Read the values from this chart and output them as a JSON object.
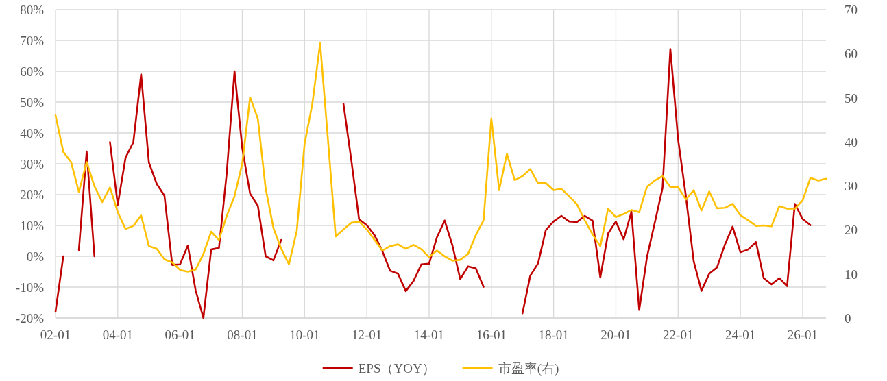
{
  "chart_data": {
    "type": "line",
    "categories": [
      "02-01",
      null,
      null,
      null,
      null,
      null,
      null,
      null,
      "04-01",
      null,
      null,
      null,
      null,
      null,
      null,
      null,
      "06-01",
      null,
      null,
      null,
      null,
      null,
      null,
      null,
      "08-01",
      null,
      null,
      null,
      null,
      null,
      null,
      null,
      "10-01",
      null,
      null,
      null,
      null,
      null,
      null,
      null,
      "12-01",
      null,
      null,
      null,
      null,
      null,
      null,
      null,
      "14-01",
      null,
      null,
      null,
      null,
      null,
      null,
      null,
      "16-01",
      null,
      null,
      null,
      null,
      null,
      null,
      null,
      "18-01",
      null,
      null,
      null,
      null,
      null,
      null,
      null,
      "20-01",
      null,
      null,
      null,
      null,
      null,
      null,
      null,
      "22-01",
      null,
      null,
      null,
      null,
      null,
      null,
      null,
      "24-01",
      null,
      null,
      null,
      null,
      null,
      null,
      null,
      "26-01",
      null,
      null,
      null
    ],
    "series": [
      {
        "name": "EPS（YOY）",
        "color": "#c00000",
        "values": [
          -18,
          0,
          null,
          2,
          34,
          0,
          null,
          37,
          16.7,
          32,
          37,
          59,
          30.4,
          23.5,
          19.6,
          -2.8,
          -2.6,
          3.5,
          -11,
          -20,
          2.2,
          2.7,
          27,
          60,
          35,
          20.3,
          16.4,
          0,
          -1.3,
          5.3,
          null,
          null,
          null,
          null,
          null,
          null,
          null,
          49.4,
          31.3,
          12,
          10.1,
          6.8,
          1.6,
          -4.7,
          -5.6,
          -11.3,
          -8,
          -2.6,
          -2.4,
          6.1,
          11.6,
          3.5,
          -7.4,
          -3.3,
          -3.9,
          -9.9,
          null,
          null,
          null,
          null,
          -18.5,
          -6.3,
          -2.3,
          8.5,
          11.3,
          13.1,
          11.3,
          11.1,
          13.1,
          11.6,
          -6.9,
          7.4,
          11.3,
          5.5,
          14.4,
          -17.4,
          -0.2,
          10.9,
          22.2,
          67.2,
          37.9,
          19.4,
          -1.6,
          -11.2,
          -5.6,
          -3.6,
          3.7,
          9.6,
          1.3,
          2.2,
          4.6,
          -7.1,
          -9.1,
          -7.1,
          -9.7,
          17,
          12.1,
          10.1,
          null,
          null
        ]
      },
      {
        "name": "市盈率(右)",
        "color": "#ffc000",
        "axis": "y2",
        "values": [
          46,
          37.7,
          35.4,
          28.6,
          35.4,
          29.9,
          26.3,
          29.6,
          24,
          20.2,
          20.9,
          23.3,
          16.3,
          15.7,
          13.3,
          12.6,
          10.9,
          10.5,
          11,
          14.5,
          19.6,
          17.7,
          23.2,
          27.6,
          35.1,
          50.1,
          45.2,
          29.4,
          20.4,
          15.7,
          12.2,
          19.8,
          39.5,
          48.6,
          62.4,
          40.6,
          18.5,
          20.1,
          21.6,
          21.9,
          20.1,
          17.7,
          15.3,
          16.3,
          16.7,
          15.7,
          16.6,
          15.6,
          13.8,
          15.3,
          14,
          13,
          13.2,
          14.5,
          18.8,
          22.2,
          45.3,
          29,
          37.3,
          31.3,
          32.2,
          33.8,
          30.6,
          30.6,
          29,
          29.3,
          27.6,
          25.8,
          22.2,
          19,
          16.3,
          24.8,
          22.9,
          23.6,
          24.5,
          24,
          29.8,
          31.2,
          32.2,
          29.7,
          29.7,
          26.9,
          29,
          24.4,
          28.7,
          24.9,
          25,
          25.9,
          23.3,
          22.2,
          20.9,
          21,
          20.8,
          25.4,
          24.8,
          24.8,
          26.7,
          31.8,
          31.2,
          31.6
        ]
      }
    ],
    "ylim": [
      -20,
      80
    ],
    "yticks": [
      {
        "value": -20,
        "label": "-20%"
      },
      {
        "value": -10,
        "label": "-10%"
      },
      {
        "value": 0,
        "label": "0%"
      },
      {
        "value": 10,
        "label": "10%"
      },
      {
        "value": 20,
        "label": "20%"
      },
      {
        "value": 30,
        "label": "30%"
      },
      {
        "value": 40,
        "label": "40%"
      },
      {
        "value": 50,
        "label": "50%"
      },
      {
        "value": 60,
        "label": "60%"
      },
      {
        "value": 70,
        "label": "70%"
      },
      {
        "value": 80,
        "label": "80%"
      }
    ],
    "y2lim": [
      0,
      70
    ],
    "y2ticks": [
      0,
      10,
      20,
      30,
      40,
      50,
      60,
      70
    ],
    "grid": true,
    "legend": "bottom"
  }
}
